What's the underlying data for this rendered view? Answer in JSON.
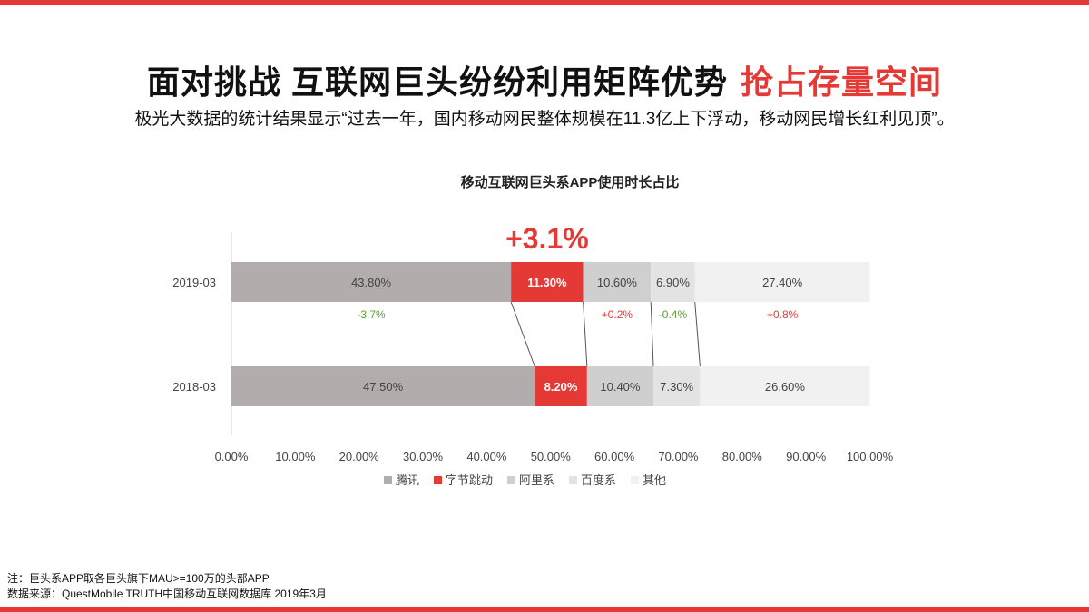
{
  "header": {
    "title_main": "面对挑战 互联网巨头纷纷利用矩阵优势",
    "title_accent": "抢占存量空间",
    "subtitle": "极光大数据的统计结果显示“过去一年，国内移动网民整体规模在11.3亿上下浮动，移动网民增长红利见顶”。"
  },
  "chart_data": {
    "type": "bar",
    "stacked": true,
    "orientation": "horizontal",
    "title": "移动互联网巨头系APP使用时长占比",
    "categories": [
      "2019-03",
      "2018-03"
    ],
    "series": [
      {
        "name": "腾讯",
        "values": [
          43.8,
          47.5
        ],
        "labels": [
          "43.80%",
          "47.50%"
        ],
        "color": "#b2acac"
      },
      {
        "name": "字节跳动",
        "values": [
          11.3,
          8.2
        ],
        "labels": [
          "11.30%",
          "8.20%"
        ],
        "color": "#e53935"
      },
      {
        "name": "阿里系",
        "values": [
          10.6,
          10.4
        ],
        "labels": [
          "10.60%",
          "10.40%"
        ],
        "color": "#cfcfcf"
      },
      {
        "name": "百度系",
        "values": [
          6.9,
          7.3
        ],
        "labels": [
          "6.90%",
          "7.30%"
        ],
        "color": "#e3e3e3"
      },
      {
        "name": "其他",
        "values": [
          27.4,
          26.6
        ],
        "labels": [
          "27.40%",
          "26.60%"
        ],
        "color": "#f1f1f1"
      }
    ],
    "changes": [
      {
        "series": "腾讯",
        "text": "-3.7%",
        "color": "#5aa02c"
      },
      {
        "series": "阿里系",
        "text": "+0.2%",
        "color": "#e53935"
      },
      {
        "series": "百度系",
        "text": "-0.4%",
        "color": "#5aa02c"
      },
      {
        "series": "其他",
        "text": "+0.8%",
        "color": "#e53935"
      }
    ],
    "highlight": {
      "series": "字节跳动",
      "text": "+3.1%",
      "color": "#e53935"
    },
    "xlim": [
      0,
      100
    ],
    "xticks": [
      "0.00%",
      "10.00%",
      "20.00%",
      "30.00%",
      "40.00%",
      "50.00%",
      "60.00%",
      "70.00%",
      "80.00%",
      "90.00%",
      "100.00%"
    ],
    "legend": "bottom",
    "grid": false
  },
  "footnotes": {
    "note": "注：巨头系APP取各巨头旗下MAU>=100万的头部APP",
    "source": "数据来源：QuestMobile TRUTH中国移动互联网数据库 2019年3月"
  }
}
